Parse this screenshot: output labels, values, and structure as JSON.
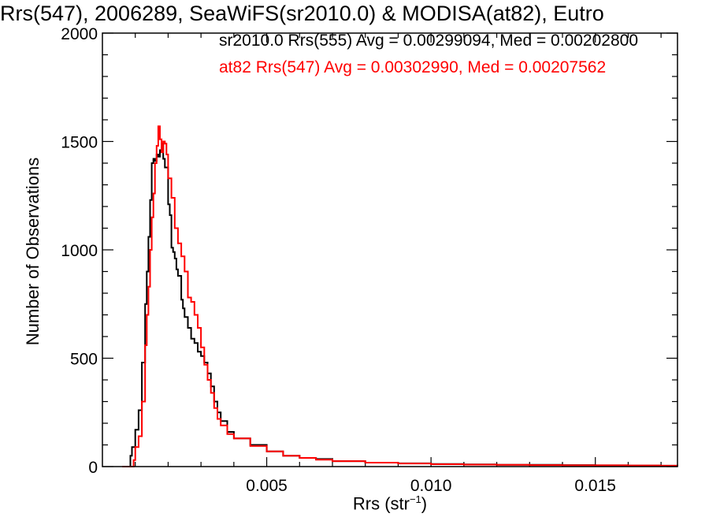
{
  "chart_data": {
    "type": "line",
    "title": "Rrs(547), 2006289, SeaWiFS(sr2010.0) & MODISA(at82), Eutro",
    "xlabel_main": "Rrs (str",
    "xlabel_sup": "−1",
    "xlabel_close": ")",
    "ylabel": "Number of Observations",
    "xlim": [
      0,
      0.0175
    ],
    "ylim": [
      0,
      2000
    ],
    "x_ticks": [
      0.005,
      0.01,
      0.015
    ],
    "x_tick_labels": [
      "0.005",
      "0.010",
      "0.015"
    ],
    "y_ticks": [
      0,
      500,
      1000,
      1500,
      2000
    ],
    "y_tick_labels": [
      "0",
      "500",
      "1000",
      "1500",
      "2000"
    ],
    "grid": false,
    "legend_position": "top-right",
    "series": [
      {
        "name": "sr2010.0 Rrs(555) Avg = 0.00299094, Med = 0.00202800",
        "color": "#000000",
        "points": [
          [
            0.0006,
            0
          ],
          [
            0.0008,
            0
          ],
          [
            0.00085,
            50
          ],
          [
            0.0009,
            90
          ],
          [
            0.001,
            170
          ],
          [
            0.0011,
            260
          ],
          [
            0.0012,
            480
          ],
          [
            0.0013,
            750
          ],
          [
            0.00135,
            900
          ],
          [
            0.0014,
            1060
          ],
          [
            0.00145,
            1230
          ],
          [
            0.0015,
            1400
          ],
          [
            0.00155,
            1420
          ],
          [
            0.0016,
            1410
          ],
          [
            0.00165,
            1440
          ],
          [
            0.0017,
            1430
          ],
          [
            0.00175,
            1460
          ],
          [
            0.0018,
            1490
          ],
          [
            0.00185,
            1420
          ],
          [
            0.0019,
            1380
          ],
          [
            0.002,
            1210
          ],
          [
            0.00205,
            1160
          ],
          [
            0.0021,
            1010
          ],
          [
            0.00215,
            990
          ],
          [
            0.0022,
            960
          ],
          [
            0.00225,
            910
          ],
          [
            0.0023,
            880
          ],
          [
            0.0024,
            770
          ],
          [
            0.00245,
            730
          ],
          [
            0.0025,
            690
          ],
          [
            0.0026,
            640
          ],
          [
            0.0027,
            590
          ],
          [
            0.0028,
            570
          ],
          [
            0.0029,
            530
          ],
          [
            0.003,
            510
          ],
          [
            0.0031,
            480
          ],
          [
            0.0032,
            430
          ],
          [
            0.0033,
            370
          ],
          [
            0.0034,
            300
          ],
          [
            0.0035,
            250
          ],
          [
            0.0036,
            210
          ],
          [
            0.0038,
            160
          ],
          [
            0.004,
            130
          ],
          [
            0.0045,
            100
          ],
          [
            0.005,
            70
          ],
          [
            0.0055,
            50
          ],
          [
            0.006,
            40
          ],
          [
            0.0065,
            35
          ],
          [
            0.007,
            25
          ],
          [
            0.008,
            18
          ],
          [
            0.009,
            15
          ],
          [
            0.01,
            12
          ],
          [
            0.011,
            10
          ],
          [
            0.012,
            8
          ],
          [
            0.013,
            8
          ],
          [
            0.014,
            7
          ],
          [
            0.015,
            6
          ],
          [
            0.016,
            5
          ],
          [
            0.017,
            4
          ],
          [
            0.0175,
            3
          ]
        ]
      },
      {
        "name": "at82 Rrs(547) Avg = 0.00302990, Med = 0.00207562",
        "color": "#ff0000",
        "points": [
          [
            0.0006,
            0
          ],
          [
            0.0009,
            0
          ],
          [
            0.00095,
            30
          ],
          [
            0.001,
            90
          ],
          [
            0.0011,
            140
          ],
          [
            0.0012,
            300
          ],
          [
            0.0013,
            560
          ],
          [
            0.00135,
            700
          ],
          [
            0.0014,
            830
          ],
          [
            0.00145,
            1000
          ],
          [
            0.0015,
            1150
          ],
          [
            0.00155,
            1260
          ],
          [
            0.0016,
            1400
          ],
          [
            0.00165,
            1480
          ],
          [
            0.0017,
            1570
          ],
          [
            0.00175,
            1510
          ],
          [
            0.0018,
            1450
          ],
          [
            0.00185,
            1500
          ],
          [
            0.0019,
            1490
          ],
          [
            0.00195,
            1440
          ],
          [
            0.002,
            1330
          ],
          [
            0.0021,
            1240
          ],
          [
            0.0022,
            1100
          ],
          [
            0.0023,
            1030
          ],
          [
            0.0024,
            970
          ],
          [
            0.0025,
            900
          ],
          [
            0.0026,
            780
          ],
          [
            0.0027,
            760
          ],
          [
            0.0028,
            700
          ],
          [
            0.0029,
            640
          ],
          [
            0.003,
            550
          ],
          [
            0.0031,
            470
          ],
          [
            0.0032,
            400
          ],
          [
            0.0033,
            340
          ],
          [
            0.0034,
            270
          ],
          [
            0.0035,
            220
          ],
          [
            0.0036,
            190
          ],
          [
            0.0038,
            150
          ],
          [
            0.004,
            130
          ],
          [
            0.0045,
            95
          ],
          [
            0.005,
            70
          ],
          [
            0.0055,
            50
          ],
          [
            0.006,
            40
          ],
          [
            0.0065,
            32
          ],
          [
            0.007,
            25
          ],
          [
            0.008,
            18
          ],
          [
            0.009,
            14
          ],
          [
            0.01,
            11
          ],
          [
            0.011,
            9
          ],
          [
            0.012,
            8
          ],
          [
            0.013,
            7
          ],
          [
            0.014,
            6
          ],
          [
            0.015,
            6
          ],
          [
            0.016,
            5
          ],
          [
            0.017,
            4
          ],
          [
            0.0175,
            3
          ]
        ]
      }
    ]
  }
}
